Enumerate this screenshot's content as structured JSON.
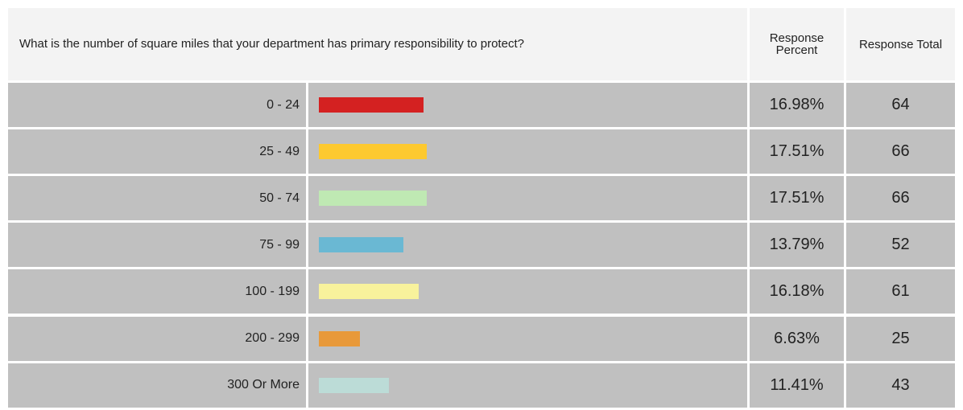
{
  "question": "What is the number of square miles that your department has primary responsibility to protect?",
  "headers": [
    "Response Percent",
    "Response Total"
  ],
  "rows": [
    {
      "label": "0 - 24",
      "percent": 16.98,
      "percent_label": "16.98%",
      "total": 64,
      "color": "#d42121"
    },
    {
      "label": "25 - 49",
      "percent": 17.51,
      "percent_label": "17.51%",
      "total": 66,
      "color": "#fdc92f"
    },
    {
      "label": "50 - 74",
      "percent": 17.51,
      "percent_label": "17.51%",
      "total": 66,
      "color": "#bfe9b3"
    },
    {
      "label": "75 - 99",
      "percent": 13.79,
      "percent_label": "13.79%",
      "total": 52,
      "color": "#6ab8d3"
    },
    {
      "label": "100 - 199",
      "percent": 16.18,
      "percent_label": "16.18%",
      "total": 61,
      "color": "#f8f29c"
    },
    {
      "label": "200 - 299",
      "percent": 6.63,
      "percent_label": "6.63%",
      "total": 25,
      "color": "#e8993a"
    },
    {
      "label": "300 Or More",
      "percent": 11.41,
      "percent_label": "11.41%",
      "total": 43,
      "color": "#bcdcd7"
    }
  ]
}
